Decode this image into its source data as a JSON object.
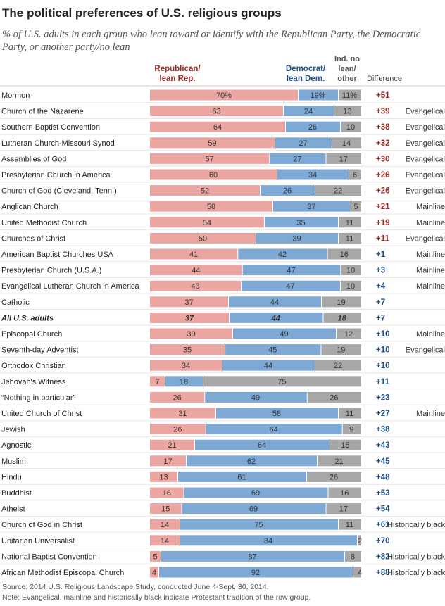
{
  "title": "The political preferences of U.S. religious groups",
  "subtitle": "% of U.S. adults in each group who lean toward or identify with the Republican Party, the Democratic Party, or another party/no lean",
  "headers": {
    "rep": [
      "Republican/",
      "lean Rep."
    ],
    "dem": [
      "Democrat/",
      "lean Dem."
    ],
    "ind": [
      "Ind. no",
      "lean/",
      "other"
    ],
    "diff": "Difference"
  },
  "colors": {
    "rep": "#eba6a2",
    "dem": "#7fa9d5",
    "ind": "#a7a7a7",
    "rep_text": "#9b2a22",
    "dem_text": "#1e4f87"
  },
  "chart_data": {
    "type": "bar",
    "stacked": true,
    "series": [
      {
        "name": "Republican/lean Rep.",
        "values": [
          70,
          63,
          64,
          59,
          57,
          60,
          52,
          58,
          54,
          50,
          41,
          44,
          43,
          37,
          37,
          39,
          35,
          34,
          7,
          26,
          31,
          26,
          21,
          17,
          13,
          16,
          15,
          14,
          14,
          5,
          4
        ]
      },
      {
        "name": "Democrat/lean Dem.",
        "values": [
          19,
          24,
          26,
          27,
          27,
          34,
          26,
          37,
          35,
          39,
          42,
          47,
          47,
          44,
          44,
          49,
          45,
          44,
          18,
          49,
          58,
          64,
          64,
          62,
          61,
          69,
          69,
          75,
          84,
          87,
          92
        ]
      },
      {
        "name": "Ind. no lean/other",
        "values": [
          11,
          13,
          10,
          14,
          17,
          6,
          22,
          5,
          11,
          11,
          16,
          10,
          10,
          19,
          18,
          12,
          19,
          22,
          75,
          26,
          11,
          9,
          15,
          21,
          26,
          16,
          17,
          11,
          2,
          8,
          4
        ]
      }
    ],
    "rows": [
      {
        "label": "Mormon",
        "rep": "70%",
        "dem": "19%",
        "ind": "11%",
        "diff": "+51",
        "party": "R",
        "tradition": ""
      },
      {
        "label": "Church of the Nazarene",
        "rep": "63",
        "dem": "24",
        "ind": "13",
        "diff": "+39",
        "party": "R",
        "tradition": "Evangelical"
      },
      {
        "label": "Southern Baptist Convention",
        "rep": "64",
        "dem": "26",
        "ind": "10",
        "diff": "+38",
        "party": "R",
        "tradition": "Evangelical"
      },
      {
        "label": "Lutheran Church-Missouri Synod",
        "rep": "59",
        "dem": "27",
        "ind": "14",
        "diff": "+32",
        "party": "R",
        "tradition": "Evangelical"
      },
      {
        "label": "Assemblies of God",
        "rep": "57",
        "dem": "27",
        "ind": "17",
        "diff": "+30",
        "party": "R",
        "tradition": "Evangelical"
      },
      {
        "label": "Presbyterian Church in America",
        "rep": "60",
        "dem": "34",
        "ind": "6",
        "diff": "+26",
        "party": "R",
        "tradition": "Evangelical"
      },
      {
        "label": "Church of God (Cleveland, Tenn.)",
        "rep": "52",
        "dem": "26",
        "ind": "22",
        "diff": "+26",
        "party": "R",
        "tradition": "Evangelical"
      },
      {
        "label": "Anglican Church",
        "rep": "58",
        "dem": "37",
        "ind": "5",
        "diff": "+21",
        "party": "R",
        "tradition": "Mainline"
      },
      {
        "label": "United Methodist Church",
        "rep": "54",
        "dem": "35",
        "ind": "11",
        "diff": "+19",
        "party": "R",
        "tradition": "Mainline"
      },
      {
        "label": "Churches of Christ",
        "rep": "50",
        "dem": "39",
        "ind": "11",
        "diff": "+11",
        "party": "R",
        "tradition": "Evangelical"
      },
      {
        "label": "American Baptist Churches USA",
        "rep": "41",
        "dem": "42",
        "ind": "16",
        "diff": "+1",
        "party": "D",
        "tradition": "Mainline"
      },
      {
        "label": "Presbyterian Church (U.S.A.)",
        "rep": "44",
        "dem": "47",
        "ind": "10",
        "diff": "+3",
        "party": "D",
        "tradition": "Mainline"
      },
      {
        "label": "Evangelical Lutheran Church in America",
        "rep": "43",
        "dem": "47",
        "ind": "10",
        "diff": "+4",
        "party": "D",
        "tradition": "Mainline"
      },
      {
        "label": "Catholic",
        "rep": "37",
        "dem": "44",
        "ind": "19",
        "diff": "+7",
        "party": "D",
        "tradition": ""
      },
      {
        "label": "All U.S. adults",
        "rep": "37",
        "dem": "44",
        "ind": "18",
        "diff": "+7",
        "party": "D",
        "tradition": "",
        "emphasis": true
      },
      {
        "label": "Episcopal Church",
        "rep": "39",
        "dem": "49",
        "ind": "12",
        "diff": "+10",
        "party": "D",
        "tradition": "Mainline"
      },
      {
        "label": "Seventh-day Adventist",
        "rep": "35",
        "dem": "45",
        "ind": "19",
        "diff": "+10",
        "party": "D",
        "tradition": "Evangelical"
      },
      {
        "label": "Orthodox Christian",
        "rep": "34",
        "dem": "44",
        "ind": "22",
        "diff": "+10",
        "party": "D",
        "tradition": ""
      },
      {
        "label": "Jehovah's Witness",
        "rep": "7",
        "dem": "18",
        "ind": "75",
        "diff": "+11",
        "party": "D",
        "tradition": ""
      },
      {
        "label": "“Nothing in particular”",
        "rep": "26",
        "dem": "49",
        "ind": "26",
        "diff": "+23",
        "party": "D",
        "tradition": ""
      },
      {
        "label": "United Church of Christ",
        "rep": "31",
        "dem": "58",
        "ind": "11",
        "diff": "+27",
        "party": "D",
        "tradition": "Mainline"
      },
      {
        "label": "Jewish",
        "rep": "26",
        "dem": "64",
        "ind": "9",
        "diff": "+38",
        "party": "D",
        "tradition": ""
      },
      {
        "label": "Agnostic",
        "rep": "21",
        "dem": "64",
        "ind": "15",
        "diff": "+43",
        "party": "D",
        "tradition": ""
      },
      {
        "label": "Muslim",
        "rep": "17",
        "dem": "62",
        "ind": "21",
        "diff": "+45",
        "party": "D",
        "tradition": ""
      },
      {
        "label": "Hindu",
        "rep": "13",
        "dem": "61",
        "ind": "26",
        "diff": "+48",
        "party": "D",
        "tradition": ""
      },
      {
        "label": "Buddhist",
        "rep": "16",
        "dem": "69",
        "ind": "16",
        "diff": "+53",
        "party": "D",
        "tradition": ""
      },
      {
        "label": "Atheist",
        "rep": "15",
        "dem": "69",
        "ind": "17",
        "diff": "+54",
        "party": "D",
        "tradition": ""
      },
      {
        "label": "Church of God in Christ",
        "rep": "14",
        "dem": "75",
        "ind": "11",
        "diff": "+61",
        "party": "D",
        "tradition": "Historically black"
      },
      {
        "label": "Unitarian Universalist",
        "rep": "14",
        "dem": "84",
        "ind": "2",
        "diff": "+70",
        "party": "D",
        "tradition": ""
      },
      {
        "label": "National Baptist Convention",
        "rep": "5",
        "dem": "87",
        "ind": "8",
        "diff": "+82",
        "party": "D",
        "tradition": "Historically black"
      },
      {
        "label": "African Methodist Episcopal Church",
        "rep": "4",
        "dem": "92",
        "ind": "4",
        "diff": "+88",
        "party": "D",
        "tradition": "Historically black"
      }
    ]
  },
  "footer": {
    "source": "Source: 2014 U.S. Religious Landscape Study, conducted June 4-Sept. 30, 2014.",
    "note": "Note: Evangelical, mainline and historically black indicate Protestant tradition of the row group."
  }
}
